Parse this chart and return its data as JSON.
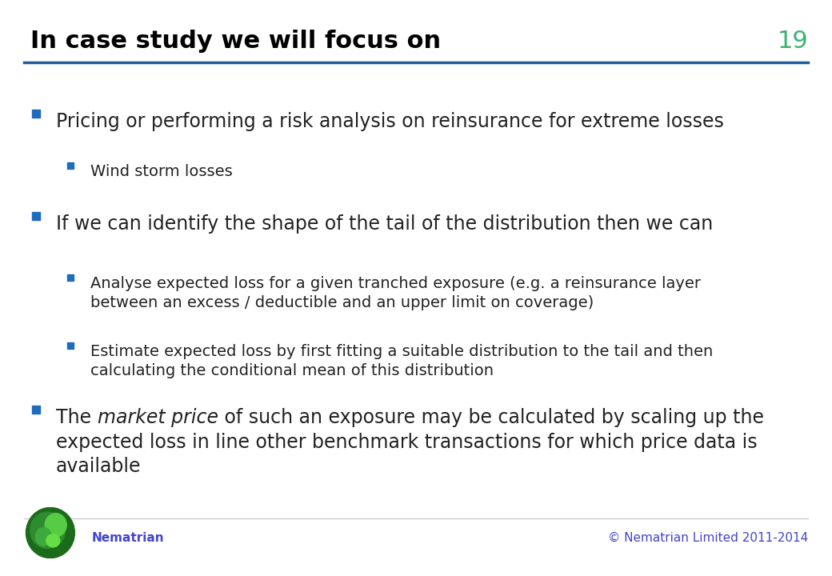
{
  "title": "In case study we will focus on",
  "slide_number": "19",
  "title_color": "#000000",
  "title_fontsize": 22,
  "slide_number_color": "#3CB371",
  "line_color": "#1F5C99",
  "background_color": "#FFFFFF",
  "bullet_color": "#1F6BBF",
  "sub_bullet_color": "#1F6BBF",
  "bullet_fontsize": 17,
  "sub_bullet_fontsize": 14,
  "footer_left": "Nematrian",
  "footer_right": "© Nematrian Limited 2011-2014",
  "footer_color": "#4444CC",
  "text_color": "#222222",
  "bullets": [
    {
      "level": 1,
      "text": "Pricing or performing a risk analysis on reinsurance for extreme losses",
      "italic_part": null
    },
    {
      "level": 2,
      "text": "Wind storm losses",
      "italic_part": null
    },
    {
      "level": 1,
      "text": "If we can identify the shape of the tail of the distribution then we can",
      "italic_part": null
    },
    {
      "level": 2,
      "text": "Analyse expected loss for a given tranched exposure (e.g. a reinsurance layer\nbetween an excess / deductible and an upper limit on coverage)",
      "italic_part": null
    },
    {
      "level": 2,
      "text": "Estimate expected loss by first fitting a suitable distribution to the tail and then\ncalculating the conditional mean of this distribution",
      "italic_part": null
    },
    {
      "level": 1,
      "text": "The |market price| of such an exposure may be calculated by scaling up the\nexpected loss in line other benchmark transactions for which price data is\navailable",
      "italic_part": "market price"
    }
  ]
}
